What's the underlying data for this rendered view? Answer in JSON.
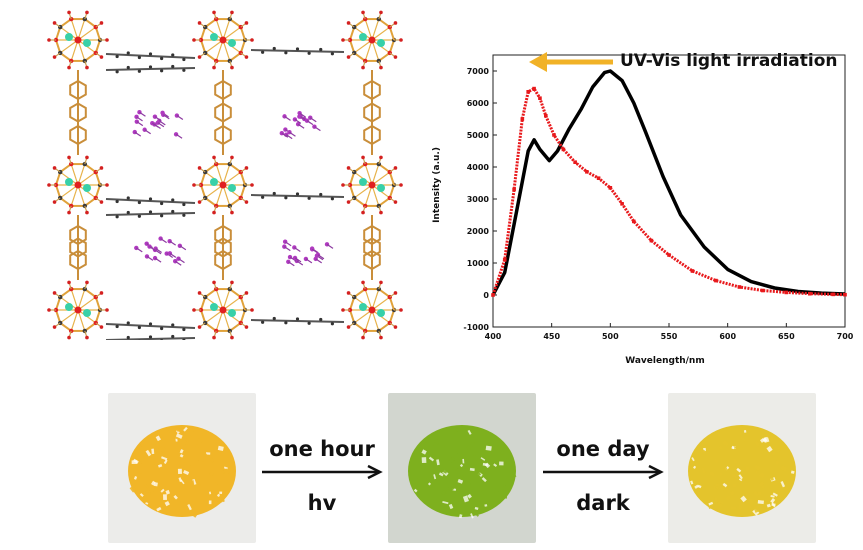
{
  "chart_data": {
    "type": "line",
    "xlabel": "Wavelength/nm",
    "ylabel": "Intensity (a.u.)",
    "xlim": [
      400,
      700
    ],
    "ylim": [
      -1000,
      7500
    ],
    "x_ticks": [
      400,
      450,
      500,
      550,
      600,
      650,
      700
    ],
    "y_ticks": [
      -1000,
      0,
      1000,
      2000,
      3000,
      4000,
      5000,
      6000,
      7000
    ],
    "annotation": "UV-Vis light irradiation",
    "grid": false,
    "series": [
      {
        "color": "#000000",
        "style": "line",
        "x": [
          400,
          410,
          420,
          430,
          435,
          440,
          448,
          455,
          465,
          475,
          485,
          495,
          500,
          510,
          520,
          530,
          545,
          560,
          580,
          600,
          620,
          640,
          660,
          680,
          700
        ],
        "y": [
          0,
          700,
          2600,
          4500,
          4850,
          4550,
          4200,
          4500,
          5200,
          5800,
          6500,
          6950,
          7000,
          6700,
          6000,
          5100,
          3700,
          2500,
          1500,
          800,
          420,
          220,
          110,
          60,
          30
        ]
      },
      {
        "color": "#e8191c",
        "style": "markers",
        "x": [
          400,
          410,
          418,
          425,
          430,
          435,
          440,
          445,
          452,
          460,
          470,
          480,
          490,
          500,
          510,
          520,
          535,
          550,
          570,
          590,
          610,
          630,
          650,
          670,
          690,
          700
        ],
        "y": [
          0,
          1100,
          3300,
          5500,
          6350,
          6450,
          6150,
          5600,
          5000,
          4550,
          4150,
          3850,
          3650,
          3350,
          2850,
          2300,
          1700,
          1250,
          750,
          450,
          250,
          140,
          80,
          40,
          20,
          10
        ]
      }
    ]
  },
  "photos": {
    "colors": {
      "initial": "#f1b628",
      "irradiated": "#7eb01e",
      "recovered": "#e4c42c"
    },
    "steps": [
      {
        "top": "one hour",
        "bottom": "hv"
      },
      {
        "top": "one day",
        "bottom": "dark"
      }
    ]
  }
}
